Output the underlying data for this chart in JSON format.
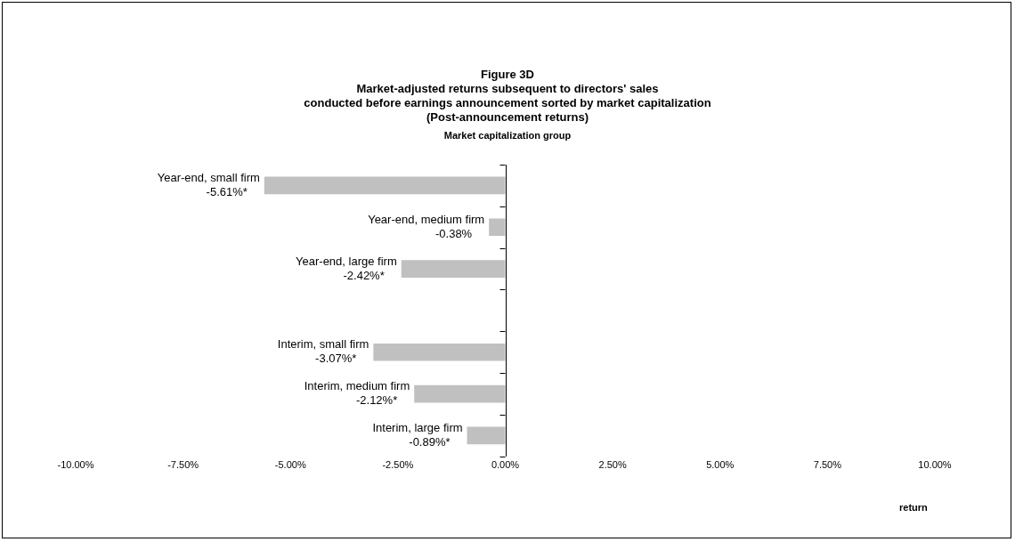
{
  "chart_data": {
    "type": "bar",
    "orientation": "horizontal",
    "title": "Figure 3D",
    "subtitle": "Market-adjusted returns subsequent to directors' sales\nconducted before earnings announcement sorted by market capitalization\n(Post-announcement returns)",
    "ylabel": "Market capitalization group",
    "xlabel": "return",
    "categories": [
      "Year-end, small firm",
      "Year-end, medium firm",
      "Year-end, large firm",
      null,
      "Interim, small firm",
      "Interim, medium firm",
      "Interim, large firm"
    ],
    "values": [
      -5.61,
      -0.38,
      -2.42,
      null,
      -3.07,
      -2.12,
      -0.89
    ],
    "value_labels": [
      "-5.61%*",
      "-0.38%",
      "-2.42%*",
      null,
      "-3.07%*",
      "-2.12%*",
      "-0.89%*"
    ],
    "color": "#c0c0c0",
    "xlim": [
      -10,
      10
    ],
    "xticks": [
      {
        "value": -10,
        "label": "-10.00%"
      },
      {
        "value": -7.5,
        "label": "-7.50%"
      },
      {
        "value": -5,
        "label": "-5.00%"
      },
      {
        "value": -2.5,
        "label": "-2.50%"
      },
      {
        "value": 0,
        "label": "0.00%"
      },
      {
        "value": 2.5,
        "label": "2.50%"
      },
      {
        "value": 5,
        "label": "5.00%"
      },
      {
        "value": 7.5,
        "label": "7.50%"
      },
      {
        "value": 10,
        "label": "10.00%"
      }
    ],
    "legend": false
  }
}
